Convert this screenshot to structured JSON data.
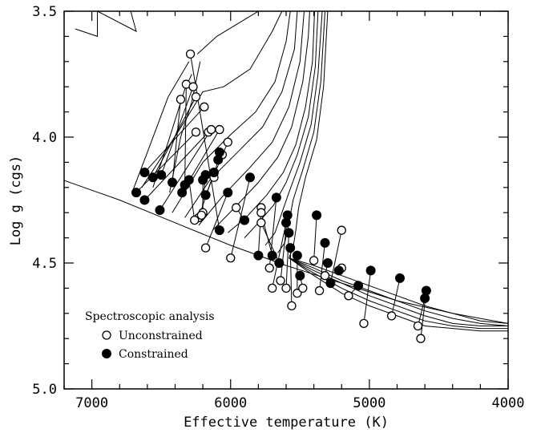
{
  "chart_data": {
    "type": "scatter",
    "xlabel": "Effective temperature (K)",
    "ylabel": "Log g (cgs)",
    "xlim": [
      7200,
      4000
    ],
    "ylim": [
      5.0,
      3.5
    ],
    "x_ticks": [
      7000,
      6000,
      5000,
      4000
    ],
    "x_tick_labels": [
      "7000",
      "6000",
      "5000",
      "4000"
    ],
    "y_ticks": [
      3.5,
      4.0,
      4.5,
      5.0
    ],
    "y_tick_labels": [
      "3.5",
      "4.0",
      "4.5",
      "5.0"
    ],
    "legend": {
      "title": "Spectroscopic analysis",
      "position": "bottom-left",
      "entries": [
        {
          "label": "Unconstrained",
          "marker": "open-circle"
        },
        {
          "label": "Constrained",
          "marker": "filled-circle"
        }
      ]
    },
    "isochrones": [
      [
        [
          7210,
          4.17
        ],
        [
          6800,
          4.25
        ],
        [
          6400,
          4.34
        ],
        [
          6000,
          4.43
        ],
        [
          5600,
          4.51
        ],
        [
          5200,
          4.58
        ],
        [
          4800,
          4.65
        ],
        [
          4400,
          4.7
        ],
        [
          4200,
          4.72
        ],
        [
          4000,
          4.74
        ]
      ],
      [
        [
          6710,
          4.22
        ],
        [
          6600,
          4.06
        ],
        [
          6450,
          3.84
        ],
        [
          6300,
          3.7
        ]
      ],
      [
        [
          6560,
          4.2
        ],
        [
          6450,
          4.02
        ],
        [
          6330,
          3.81
        ],
        [
          6280,
          3.75
        ]
      ],
      [
        [
          6440,
          4.22
        ],
        [
          6360,
          4.0
        ],
        [
          6280,
          3.86
        ],
        [
          6220,
          3.7
        ]
      ],
      [
        [
          6640,
          4.2
        ],
        [
          6380,
          3.98
        ],
        [
          6200,
          3.82
        ],
        [
          6050,
          3.8
        ],
        [
          5860,
          3.73
        ],
        [
          5700,
          3.58
        ],
        [
          5630,
          3.5
        ]
      ],
      [
        [
          6420,
          4.3
        ],
        [
          6200,
          4.1
        ],
        [
          6000,
          3.99
        ],
        [
          5820,
          3.9
        ],
        [
          5680,
          3.78
        ],
        [
          5600,
          3.62
        ],
        [
          5570,
          3.5
        ]
      ],
      [
        [
          6330,
          4.32
        ],
        [
          6150,
          4.17
        ],
        [
          5950,
          4.06
        ],
        [
          5770,
          3.96
        ],
        [
          5630,
          3.82
        ],
        [
          5540,
          3.65
        ],
        [
          5520,
          3.5
        ]
      ],
      [
        [
          6230,
          4.35
        ],
        [
          6050,
          4.23
        ],
        [
          5860,
          4.12
        ],
        [
          5700,
          4.02
        ],
        [
          5580,
          3.88
        ],
        [
          5500,
          3.7
        ],
        [
          5470,
          3.5
        ]
      ],
      [
        [
          6130,
          4.37
        ],
        [
          5970,
          4.28
        ],
        [
          5800,
          4.18
        ],
        [
          5660,
          4.08
        ],
        [
          5560,
          3.96
        ],
        [
          5480,
          3.78
        ],
        [
          5440,
          3.6
        ],
        [
          5430,
          3.5
        ]
      ],
      [
        [
          6020,
          4.38
        ],
        [
          5890,
          4.32
        ],
        [
          5740,
          4.23
        ],
        [
          5620,
          4.14
        ],
        [
          5530,
          4.03
        ],
        [
          5460,
          3.88
        ],
        [
          5410,
          3.7
        ],
        [
          5395,
          3.5
        ]
      ],
      [
        [
          5900,
          4.4
        ],
        [
          5800,
          4.34
        ],
        [
          5690,
          4.27
        ],
        [
          5600,
          4.18
        ],
        [
          5520,
          4.07
        ],
        [
          5440,
          3.92
        ],
        [
          5390,
          3.72
        ],
        [
          5370,
          3.5
        ]
      ],
      [
        [
          5750,
          4.43
        ],
        [
          5680,
          4.38
        ],
        [
          5630,
          4.3
        ],
        [
          5580,
          4.22
        ],
        [
          5500,
          4.1
        ],
        [
          5420,
          3.95
        ],
        [
          5370,
          3.75
        ],
        [
          5340,
          3.5
        ]
      ],
      [
        [
          5660,
          4.46
        ],
        [
          5610,
          4.42
        ],
        [
          5580,
          4.34
        ],
        [
          5550,
          4.25
        ],
        [
          5480,
          4.13
        ],
        [
          5400,
          3.98
        ],
        [
          5350,
          3.78
        ],
        [
          5320,
          3.5
        ]
      ],
      [
        [
          5580,
          4.48
        ],
        [
          5550,
          4.44
        ],
        [
          5530,
          4.37
        ],
        [
          5510,
          4.28
        ],
        [
          5460,
          4.16
        ],
        [
          5380,
          4.01
        ],
        [
          5330,
          3.8
        ],
        [
          5300,
          3.5
        ]
      ],
      [
        [
          5580,
          4.48
        ],
        [
          5400,
          4.51
        ],
        [
          5200,
          4.55
        ],
        [
          5000,
          4.59
        ],
        [
          4800,
          4.63
        ],
        [
          4600,
          4.67
        ],
        [
          4400,
          4.7
        ],
        [
          4200,
          4.73
        ],
        [
          4000,
          4.74
        ]
      ],
      [
        [
          5580,
          4.48
        ],
        [
          5400,
          4.52
        ],
        [
          5200,
          4.57
        ],
        [
          5000,
          4.61
        ],
        [
          4800,
          4.65
        ],
        [
          4600,
          4.69
        ],
        [
          4400,
          4.72
        ],
        [
          4200,
          4.74
        ],
        [
          4000,
          4.75
        ]
      ],
      [
        [
          5580,
          4.48
        ],
        [
          5400,
          4.53
        ],
        [
          5200,
          4.58
        ],
        [
          5000,
          4.63
        ],
        [
          4800,
          4.67
        ],
        [
          4600,
          4.71
        ],
        [
          4400,
          4.74
        ],
        [
          4200,
          4.75
        ],
        [
          4000,
          4.75
        ]
      ],
      [
        [
          5580,
          4.48
        ],
        [
          5400,
          4.54
        ],
        [
          5200,
          4.6
        ],
        [
          5000,
          4.65
        ],
        [
          4800,
          4.69
        ],
        [
          4600,
          4.73
        ],
        [
          4400,
          4.75
        ],
        [
          4200,
          4.76
        ],
        [
          4000,
          4.76
        ]
      ],
      [
        [
          5580,
          4.48
        ],
        [
          5400,
          4.55
        ],
        [
          5200,
          4.62
        ],
        [
          5000,
          4.67
        ],
        [
          4800,
          4.71
        ],
        [
          4600,
          4.75
        ],
        [
          4400,
          4.76
        ],
        [
          4200,
          4.77
        ],
        [
          4000,
          4.77
        ]
      ],
      [
        [
          7120,
          3.57
        ],
        [
          6960,
          3.6
        ],
        [
          6960,
          3.5
        ],
        [
          6680,
          3.58
        ],
        [
          6720,
          3.5
        ],
        [
          7020,
          3.5
        ]
      ],
      [
        [
          6240,
          3.67
        ],
        [
          6100,
          3.6
        ],
        [
          5800,
          3.5
        ]
      ]
    ],
    "pairs": [
      {
        "unconstrained": [
          6290,
          3.67
        ],
        "constrained": [
          6080,
          4.37
        ]
      },
      {
        "unconstrained": [
          6320,
          3.79
        ],
        "constrained": [
          6330,
          4.19
        ]
      },
      {
        "unconstrained": [
          6360,
          3.85
        ],
        "constrained": [
          6420,
          4.18
        ]
      },
      {
        "unconstrained": [
          6270,
          3.8
        ],
        "constrained": [
          6500,
          4.15
        ]
      },
      {
        "unconstrained": [
          6250,
          3.84
        ],
        "constrained": [
          6560,
          4.16
        ]
      },
      {
        "unconstrained": [
          6190,
          3.88
        ],
        "constrained": [
          6620,
          4.14
        ]
      },
      {
        "unconstrained": [
          6250,
          3.98
        ],
        "constrained": [
          6680,
          4.22
        ]
      },
      {
        "unconstrained": [
          6160,
          3.98
        ],
        "constrained": [
          6620,
          4.25
        ]
      },
      {
        "unconstrained": [
          6140,
          3.97
        ],
        "constrained": [
          6510,
          4.29
        ]
      },
      {
        "unconstrained": [
          6080,
          3.97
        ],
        "constrained": [
          6350,
          4.22
        ]
      },
      {
        "unconstrained": [
          6020,
          4.02
        ],
        "constrained": [
          6180,
          4.23
        ]
      },
      {
        "unconstrained": [
          6060,
          4.07
        ],
        "constrained": [
          6090,
          4.09
        ]
      },
      {
        "unconstrained": [
          6120,
          4.16
        ],
        "constrained": [
          6080,
          4.06
        ]
      },
      {
        "unconstrained": [
          6200,
          4.3
        ],
        "constrained": [
          6200,
          4.17
        ]
      },
      {
        "unconstrained": [
          6230,
          4.32
        ],
        "constrained": [
          6120,
          4.14
        ]
      },
      {
        "unconstrained": [
          6260,
          4.33
        ],
        "constrained": [
          6300,
          4.17
        ]
      },
      {
        "unconstrained": [
          6210,
          4.31
        ],
        "constrained": [
          6180,
          4.15
        ]
      },
      {
        "unconstrained": [
          6180,
          4.44
        ],
        "constrained": [
          6020,
          4.22
        ]
      },
      {
        "unconstrained": [
          6000,
          4.48
        ],
        "constrained": [
          5860,
          4.16
        ]
      },
      {
        "unconstrained": [
          5960,
          4.28
        ],
        "constrained": [
          5900,
          4.33
        ]
      },
      {
        "unconstrained": [
          5780,
          4.28
        ],
        "constrained": [
          5800,
          4.47
        ]
      },
      {
        "unconstrained": [
          5780,
          4.3
        ],
        "constrained": [
          5700,
          4.47
        ]
      },
      {
        "unconstrained": [
          5780,
          4.34
        ],
        "constrained": [
          5650,
          4.5
        ]
      },
      {
        "unconstrained": [
          5720,
          4.52
        ],
        "constrained": [
          5670,
          4.24
        ]
      },
      {
        "unconstrained": [
          5700,
          4.6
        ],
        "constrained": [
          5600,
          4.34
        ]
      },
      {
        "unconstrained": [
          5640,
          4.57
        ],
        "constrained": [
          5590,
          4.31
        ]
      },
      {
        "unconstrained": [
          5600,
          4.6
        ],
        "constrained": [
          5580,
          4.38
        ]
      },
      {
        "unconstrained": [
          5560,
          4.67
        ],
        "constrained": [
          5570,
          4.44
        ]
      },
      {
        "unconstrained": [
          5520,
          4.62
        ],
        "constrained": [
          5520,
          4.47
        ]
      },
      {
        "unconstrained": [
          5480,
          4.6
        ],
        "constrained": [
          5500,
          4.55
        ]
      },
      {
        "unconstrained": [
          5400,
          4.49
        ],
        "constrained": [
          5380,
          4.31
        ]
      },
      {
        "unconstrained": [
          5360,
          4.61
        ],
        "constrained": [
          5320,
          4.42
        ]
      },
      {
        "unconstrained": [
          5320,
          4.55
        ],
        "constrained": [
          5300,
          4.5
        ]
      },
      {
        "unconstrained": [
          5200,
          4.37
        ],
        "constrained": [
          5280,
          4.58
        ]
      },
      {
        "unconstrained": [
          5200,
          4.52
        ],
        "constrained": [
          5220,
          4.53
        ]
      },
      {
        "unconstrained": [
          5150,
          4.63
        ],
        "constrained": [
          5080,
          4.59
        ]
      },
      {
        "unconstrained": [
          5040,
          4.74
        ],
        "constrained": [
          4990,
          4.53
        ]
      },
      {
        "unconstrained": [
          4840,
          4.71
        ],
        "constrained": [
          4780,
          4.56
        ]
      },
      {
        "unconstrained": [
          4650,
          4.75
        ],
        "constrained": [
          4600,
          4.64
        ]
      },
      {
        "unconstrained": [
          4630,
          4.8
        ],
        "constrained": [
          4590,
          4.61
        ]
      }
    ]
  }
}
